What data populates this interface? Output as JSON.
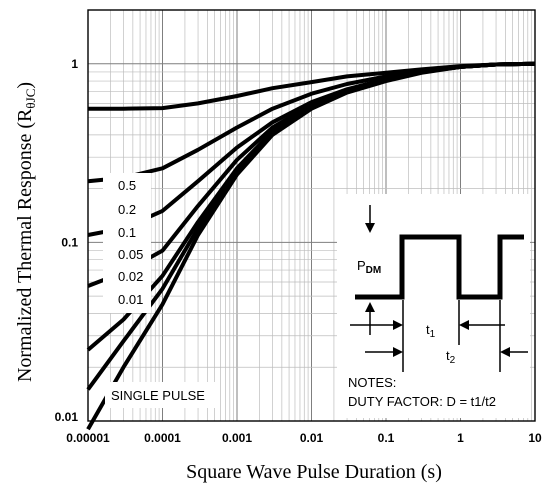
{
  "chart_data": {
    "type": "line",
    "x_scale": "log",
    "y_scale": "log",
    "xlim": [
      1e-05,
      10
    ],
    "ylim": [
      0.01,
      2
    ],
    "xlabel": "Square Wave Pulse Duration (s)",
    "ylabel_main": "Normalized Thermal Response (R",
    "ylabel_sub": "θJC",
    "ylabel_close": ")",
    "x_ticks": [
      1e-05,
      0.0001,
      0.001,
      0.01,
      0.1,
      1,
      10
    ],
    "x_tick_labels": [
      "0.00001",
      "0.0001",
      "0.001",
      "0.01",
      "0.1",
      "1",
      "10"
    ],
    "y_ticks": [
      0.01,
      0.1,
      1
    ],
    "y_tick_labels": [
      "0.01",
      "0.1",
      "1"
    ],
    "grid": true,
    "series": [
      {
        "name": "0.5",
        "x": [
          1e-05,
          3e-05,
          0.0001,
          0.0003,
          0.001,
          0.003,
          0.01,
          0.03,
          0.1,
          0.3,
          1,
          3,
          10
        ],
        "y": [
          0.56,
          0.56,
          0.565,
          0.6,
          0.66,
          0.73,
          0.79,
          0.85,
          0.89,
          0.93,
          0.97,
          0.99,
          1.0
        ]
      },
      {
        "name": "0.2",
        "x": [
          1e-05,
          3e-05,
          0.0001,
          0.0003,
          0.001,
          0.003,
          0.01,
          0.03,
          0.1,
          0.3,
          1,
          3,
          10
        ],
        "y": [
          0.22,
          0.23,
          0.26,
          0.33,
          0.44,
          0.56,
          0.68,
          0.77,
          0.85,
          0.91,
          0.96,
          0.99,
          1.0
        ]
      },
      {
        "name": "0.1",
        "x": [
          1e-05,
          3e-05,
          0.0001,
          0.0003,
          0.001,
          0.003,
          0.01,
          0.03,
          0.1,
          0.3,
          1,
          3,
          10
        ],
        "y": [
          0.11,
          0.12,
          0.15,
          0.22,
          0.34,
          0.47,
          0.61,
          0.72,
          0.82,
          0.9,
          0.96,
          0.99,
          1.0
        ]
      },
      {
        "name": "0.05",
        "x": [
          1e-05,
          3e-05,
          0.0001,
          0.0003,
          0.001,
          0.003,
          0.01,
          0.03,
          0.1,
          0.3,
          1,
          3,
          10
        ],
        "y": [
          0.057,
          0.068,
          0.09,
          0.16,
          0.29,
          0.44,
          0.59,
          0.71,
          0.82,
          0.9,
          0.96,
          0.99,
          1.0
        ]
      },
      {
        "name": "0.02",
        "x": [
          1e-05,
          3e-05,
          0.0001,
          0.0003,
          0.001,
          0.003,
          0.01,
          0.03,
          0.1,
          0.3,
          1,
          3,
          10
        ],
        "y": [
          0.025,
          0.037,
          0.065,
          0.13,
          0.26,
          0.42,
          0.58,
          0.7,
          0.81,
          0.9,
          0.96,
          0.99,
          1.0
        ]
      },
      {
        "name": "0.01",
        "x": [
          1e-05,
          3e-05,
          0.0001,
          0.0003,
          0.001,
          0.003,
          0.01,
          0.03,
          0.1,
          0.3,
          1,
          3,
          10
        ],
        "y": [
          0.015,
          0.028,
          0.055,
          0.12,
          0.25,
          0.41,
          0.57,
          0.7,
          0.81,
          0.9,
          0.96,
          0.99,
          1.0
        ]
      },
      {
        "name": "SINGLE PULSE",
        "x": [
          1e-05,
          3e-05,
          0.0001,
          0.0003,
          0.001,
          0.003,
          0.01,
          0.03,
          0.1,
          0.3,
          1,
          3,
          10
        ],
        "y": [
          0.009,
          0.02,
          0.045,
          0.11,
          0.24,
          0.4,
          0.56,
          0.69,
          0.8,
          0.89,
          0.96,
          0.99,
          1.0
        ]
      }
    ],
    "series_labels": [
      "0.5",
      "0.2",
      "0.1",
      "0.05",
      "0.02",
      "0.01",
      "SINGLE PULSE"
    ],
    "inset": {
      "pdm_main": "P",
      "pdm_sub": "DM",
      "t1_main": "t",
      "t1_sub": "1",
      "t2_main": "t",
      "t2_sub": "2",
      "notes_title": "NOTES:",
      "notes_text": "DUTY FACTOR: D = t1/t2"
    }
  }
}
